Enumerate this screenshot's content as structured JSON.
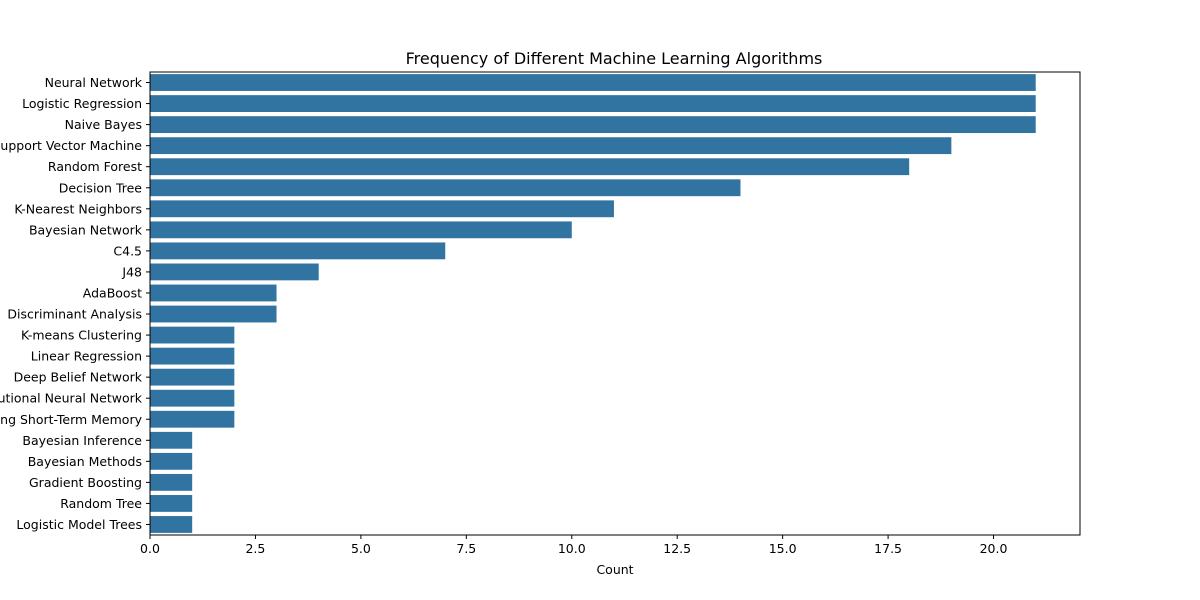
{
  "chart_data": {
    "type": "bar",
    "orientation": "horizontal",
    "title": "Frequency of Different Machine Learning Algorithms",
    "xlabel": "Count",
    "ylabel": "",
    "xlim": [
      0,
      22.05
    ],
    "xticks": [
      0,
      2.5,
      5,
      7.5,
      10,
      12.5,
      15,
      17.5,
      20
    ],
    "xtick_labels": [
      "0.0",
      "2.5",
      "5.0",
      "7.5",
      "10.0",
      "12.5",
      "15.0",
      "17.5",
      "20.0"
    ],
    "grid": false,
    "bar_color": "#3274a1",
    "categories": [
      "Neural Network",
      "Logistic Regression",
      "Naive Bayes",
      "Support Vector Machine",
      "Random Forest",
      "Decision Tree",
      "K-Nearest Neighbors",
      "Bayesian Network",
      "C4.5",
      "J48",
      "AdaBoost",
      "Discriminant Analysis",
      "K-means Clustering",
      "Linear Regression",
      "Deep Belief Network",
      "Convolutional Neural Network",
      "Long Short-Term Memory",
      "Bayesian Inference",
      "Bayesian Methods",
      "Gradient Boosting",
      "Random Tree",
      "Logistic Model Trees"
    ],
    "values": [
      21,
      21,
      21,
      19,
      18,
      14,
      11,
      10,
      7,
      4,
      3,
      3,
      2,
      2,
      2,
      2,
      2,
      1,
      1,
      1,
      1,
      1
    ]
  }
}
